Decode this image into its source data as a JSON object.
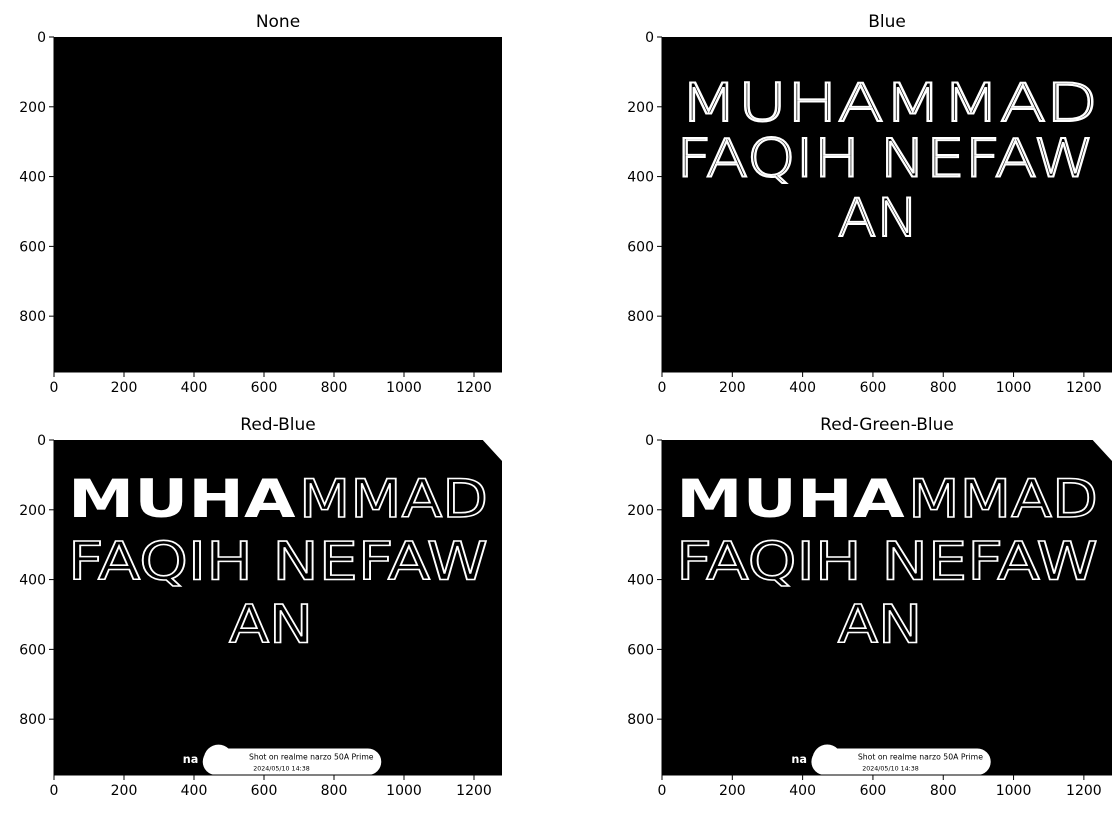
{
  "chart_data": [
    {
      "type": "image",
      "title": "None",
      "xlim": [
        0,
        1280
      ],
      "ylim": [
        960,
        0
      ],
      "xticks": [
        0,
        200,
        400,
        600,
        800,
        1000,
        1200
      ],
      "yticks": [
        0,
        200,
        400,
        600,
        800
      ],
      "content": "empty"
    },
    {
      "type": "image",
      "title": "Blue",
      "xlim": [
        0,
        1280
      ],
      "ylim": [
        960,
        0
      ],
      "xticks": [
        0,
        200,
        400,
        600,
        800,
        1000,
        1200
      ],
      "yticks": [
        0,
        200,
        400,
        600,
        800
      ],
      "content": "faint"
    },
    {
      "type": "image",
      "title": "Red-Blue",
      "xlim": [
        0,
        1280
      ],
      "ylim": [
        960,
        0
      ],
      "xticks": [
        0,
        200,
        400,
        600,
        800,
        1000,
        1200
      ],
      "yticks": [
        0,
        200,
        400,
        600,
        800
      ],
      "content": "full"
    },
    {
      "type": "image",
      "title": "Red-Green-Blue",
      "xlim": [
        0,
        1280
      ],
      "ylim": [
        960,
        0
      ],
      "xticks": [
        0,
        200,
        400,
        600,
        800,
        1000,
        1200
      ],
      "yticks": [
        0,
        200,
        400,
        600,
        800
      ],
      "content": "full"
    }
  ],
  "handwriting": {
    "line1_bold": "MUHA",
    "line1_thin": "MMAD",
    "line1": "MUHAMMAD",
    "line2": "FAQIH NEFAW",
    "line3": "AN"
  },
  "watermark": {
    "brand": "na",
    "line1": "Shot on realme narzo 50A Prime",
    "line2": "2024/05/10  14:38"
  }
}
